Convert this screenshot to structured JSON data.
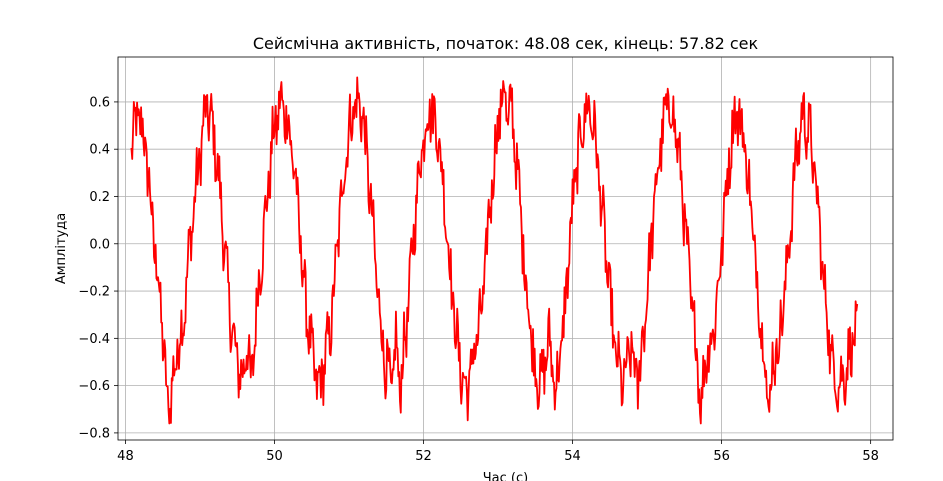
{
  "chart_data": {
    "type": "line",
    "title": "Сейсмічна активність, початок: 48.08 сек, кінець: 57.82 сек",
    "xlabel": "Час (с)",
    "ylabel": "Амплітуда",
    "xlim": [
      47.9,
      58.3
    ],
    "ylim": [
      -0.83,
      0.79
    ],
    "xticks": [
      48,
      50,
      52,
      54,
      56,
      58
    ],
    "xtick_labels": [
      "48",
      "50",
      "52",
      "54",
      "56",
      "58"
    ],
    "yticks": [
      -0.8,
      -0.6,
      -0.4,
      -0.2,
      0.0,
      0.2,
      0.4,
      0.6
    ],
    "ytick_labels": [
      "−0.8",
      "−0.6",
      "−0.4",
      "−0.2",
      "0.0",
      "0.2",
      "0.4",
      "0.6"
    ],
    "grid": true,
    "series": [
      {
        "color": "#ff0000",
        "x_start": 48.08,
        "x_end": 57.82,
        "x": [
          48.08,
          48.18,
          48.28,
          48.38,
          48.48,
          48.53,
          48.58,
          48.68,
          48.78,
          48.88,
          48.98,
          49.08,
          49.18,
          49.28,
          49.38,
          49.48,
          49.58,
          49.63,
          49.68,
          49.78,
          49.88,
          49.98,
          50.08,
          50.18,
          50.28,
          50.38,
          50.48,
          50.58,
          50.68,
          50.78,
          50.88,
          50.98,
          51.08,
          51.18,
          51.28,
          51.38,
          51.48,
          51.58,
          51.63,
          51.68,
          51.78,
          51.88,
          51.98,
          52.08,
          52.18,
          52.28,
          52.38,
          52.48,
          52.58,
          52.68,
          52.78,
          52.88,
          52.98,
          53.08,
          53.13,
          53.18,
          53.28,
          53.38,
          53.48,
          53.58,
          53.68,
          53.78,
          53.88,
          53.98,
          54.08,
          54.18,
          54.28,
          54.38,
          54.48,
          54.58,
          54.68,
          54.78,
          54.88,
          54.98,
          55.08,
          55.18,
          55.28,
          55.38,
          55.48,
          55.58,
          55.68,
          55.73,
          55.78,
          55.88,
          55.98,
          56.08,
          56.18,
          56.28,
          56.38,
          56.48,
          56.58,
          56.63,
          56.68,
          56.78,
          56.88,
          56.98,
          57.08,
          57.18,
          57.28,
          57.38,
          57.48,
          57.58,
          57.68,
          57.78,
          57.82
        ],
        "y": [
          0.42,
          0.55,
          0.38,
          0.02,
          -0.28,
          -0.55,
          -0.72,
          -0.48,
          -0.32,
          0.05,
          0.32,
          0.58,
          0.48,
          0.18,
          -0.22,
          -0.48,
          -0.58,
          -0.38,
          -0.62,
          -0.2,
          0.12,
          0.45,
          0.6,
          0.52,
          0.28,
          -0.12,
          -0.42,
          -0.62,
          -0.5,
          -0.28,
          0.14,
          0.44,
          0.6,
          0.56,
          0.22,
          -0.18,
          -0.5,
          -0.62,
          -0.4,
          -0.62,
          -0.32,
          0.1,
          0.42,
          0.58,
          0.5,
          0.2,
          -0.2,
          -0.5,
          -0.64,
          -0.45,
          -0.3,
          0.12,
          0.45,
          0.68,
          0.5,
          0.6,
          0.22,
          -0.18,
          -0.5,
          -0.6,
          -0.4,
          -0.62,
          -0.35,
          0.08,
          0.4,
          0.58,
          0.52,
          0.2,
          -0.16,
          -0.48,
          -0.6,
          -0.44,
          -0.6,
          -0.28,
          0.1,
          0.42,
          0.6,
          0.5,
          0.2,
          -0.2,
          -0.5,
          -0.7,
          -0.48,
          -0.4,
          -0.1,
          0.3,
          0.56,
          0.5,
          0.2,
          -0.18,
          -0.48,
          -0.72,
          -0.52,
          -0.4,
          -0.1,
          0.3,
          0.55,
          0.48,
          0.2,
          -0.2,
          -0.5,
          -0.6,
          -0.52,
          -0.38,
          -0.4
        ]
      }
    ]
  }
}
